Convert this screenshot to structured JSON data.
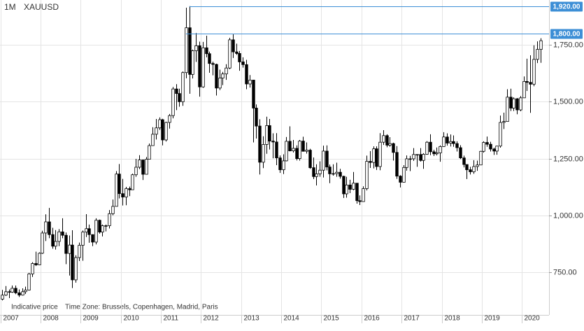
{
  "chart_data": {
    "type": "candlestick",
    "period": "1M",
    "title": "XAUUSD",
    "categories": [
      "2007",
      null,
      null,
      null,
      null,
      null,
      null,
      null,
      null,
      null,
      null,
      null,
      "2008",
      null,
      null,
      null,
      null,
      null,
      null,
      null,
      null,
      null,
      null,
      null,
      "2009",
      null,
      null,
      null,
      null,
      null,
      null,
      null,
      null,
      null,
      null,
      null,
      "2010",
      null,
      null,
      null,
      null,
      null,
      null,
      null,
      null,
      null,
      null,
      null,
      "2011",
      null,
      null,
      null,
      null,
      null,
      null,
      null,
      null,
      null,
      null,
      null,
      "2012",
      null,
      null,
      null,
      null,
      null,
      null,
      null,
      null,
      null,
      null,
      null,
      "2013",
      null,
      null,
      null,
      null,
      null,
      null,
      null,
      null,
      null,
      null,
      null,
      "2014",
      null,
      null,
      null,
      null,
      null,
      null,
      null,
      null,
      null,
      null,
      null,
      "2015",
      null,
      null,
      null,
      null,
      null,
      null,
      null,
      null,
      null,
      null,
      null,
      "2016",
      null,
      null,
      null,
      null,
      null,
      null,
      null,
      null,
      null,
      null,
      null,
      "2017",
      null,
      null,
      null,
      null,
      null,
      null,
      null,
      null,
      null,
      null,
      null,
      "2018",
      null,
      null,
      null,
      null,
      null,
      null,
      null,
      null,
      null,
      null,
      null,
      "2019",
      null,
      null,
      null,
      null,
      null,
      null,
      null,
      null,
      null,
      null,
      null,
      "2020",
      null,
      null,
      null,
      null,
      null
    ],
    "open": [
      632,
      650,
      665,
      663,
      680,
      660,
      650,
      665,
      672,
      743,
      789,
      783,
      834,
      923,
      972,
      916,
      865,
      886,
      928,
      913,
      833,
      870,
      717,
      815,
      869,
      927,
      942,
      916,
      883,
      979,
      927,
      955,
      955,
      1008,
      1040,
      1182,
      1096,
      1081,
      1118,
      1113,
      1179,
      1212,
      1244,
      1181,
      1247,
      1307,
      1357,
      1385,
      1421,
      1332,
      1409,
      1439,
      1556,
      1536,
      1500,
      1628,
      1825,
      1620,
      1724,
      1746,
      1565,
      1737,
      1711,
      1668,
      1664,
      1560,
      1604,
      1622,
      1648,
      1772,
      1719,
      1712,
      1675,
      1663,
      1578,
      1595,
      1472,
      1393,
      1234,
      1312,
      1395,
      1327,
      1323,
      1253,
      1201,
      1240,
      1326,
      1284,
      1295,
      1250,
      1327,
      1282,
      1287,
      1210,
      1171,
      1183,
      1199,
      1283,
      1213,
      1183,
      1184,
      1190,
      1172,
      1095,
      1134,
      1115,
      1142,
      1065,
      1061,
      1118,
      1238,
      1233,
      1293,
      1215,
      1322,
      1351,
      1309,
      1316,
      1277,
      1173,
      1146,
      1211,
      1249,
      1249,
      1268,
      1268,
      1242,
      1269,
      1322,
      1280,
      1271,
      1275,
      1303,
      1345,
      1318,
      1325,
      1316,
      1298,
      1253,
      1224,
      1201,
      1192,
      1215,
      1222,
      1282,
      1321,
      1313,
      1292,
      1283,
      1305,
      1409,
      1413,
      1520,
      1472,
      1513,
      1464,
      1517,
      1589,
      1585,
      1577,
      1686,
      1730
    ],
    "high": [
      673,
      690,
      675,
      692,
      692,
      675,
      680,
      687,
      748,
      795,
      841,
      838,
      933,
      1005,
      1033,
      946,
      936,
      940,
      988,
      925,
      912,
      935,
      825,
      881,
      934,
      1006,
      960,
      917,
      988,
      982,
      960,
      960,
      1024,
      1070,
      1195,
      1226,
      1161,
      1126,
      1127,
      1184,
      1249,
      1265,
      1245,
      1257,
      1316,
      1388,
      1424,
      1431,
      1425,
      1412,
      1446,
      1565,
      1577,
      1557,
      1633,
      1913,
      1920,
      1729,
      1802,
      1764,
      1763,
      1790,
      1720,
      1676,
      1667,
      1641,
      1631,
      1665,
      1781,
      1796,
      1755,
      1723,
      1695,
      1684,
      1617,
      1596,
      1488,
      1423,
      1348,
      1434,
      1424,
      1361,
      1362,
      1264,
      1269,
      1345,
      1392,
      1332,
      1308,
      1332,
      1346,
      1321,
      1293,
      1255,
      1225,
      1238,
      1307,
      1308,
      1224,
      1225,
      1232,
      1205,
      1175,
      1170,
      1157,
      1191,
      1142,
      1088,
      1128,
      1263,
      1283,
      1304,
      1304,
      1362,
      1375,
      1357,
      1344,
      1320,
      1305,
      1177,
      1221,
      1264,
      1262,
      1296,
      1269,
      1296,
      1274,
      1327,
      1357,
      1289,
      1299,
      1308,
      1366,
      1361,
      1356,
      1352,
      1326,
      1309,
      1263,
      1222,
      1214,
      1243,
      1241,
      1284,
      1326,
      1347,
      1324,
      1298,
      1306,
      1439,
      1452,
      1555,
      1557,
      1519,
      1516,
      1525,
      1611,
      1689,
      1704,
      1748,
      1765,
      1779
    ],
    "low": [
      627,
      646,
      637,
      660,
      654,
      642,
      648,
      655,
      670,
      730,
      778,
      782,
      831,
      888,
      900,
      854,
      850,
      865,
      900,
      786,
      736,
      681,
      705,
      800,
      801,
      905,
      880,
      865,
      873,
      920,
      908,
      930,
      943,
      1001,
      1040,
      1075,
      1044,
      1045,
      1085,
      1113,
      1170,
      1204,
      1156,
      1180,
      1246,
      1312,
      1334,
      1376,
      1308,
      1325,
      1382,
      1427,
      1463,
      1478,
      1482,
      1603,
      1535,
      1602,
      1675,
      1522,
      1561,
      1695,
      1627,
      1616,
      1527,
      1551,
      1573,
      1596,
      1643,
      1692,
      1706,
      1636,
      1650,
      1555,
      1562,
      1321,
      1338,
      1180,
      1208,
      1271,
      1290,
      1251,
      1221,
      1187,
      1182,
      1238,
      1282,
      1277,
      1242,
      1241,
      1281,
      1272,
      1205,
      1160,
      1132,
      1170,
      1167,
      1198,
      1142,
      1175,
      1170,
      1162,
      1077,
      1078,
      1098,
      1111,
      1052,
      1046,
      1061,
      1110,
      1209,
      1207,
      1200,
      1199,
      1310,
      1300,
      1302,
      1241,
      1161,
      1123,
      1145,
      1197,
      1195,
      1240,
      1214,
      1237,
      1205,
      1267,
      1265,
      1261,
      1264,
      1236,
      1302,
      1307,
      1303,
      1302,
      1281,
      1248,
      1211,
      1160,
      1180,
      1183,
      1196,
      1221,
      1276,
      1302,
      1281,
      1266,
      1267,
      1298,
      1380,
      1412,
      1459,
      1459,
      1445,
      1458,
      1517,
      1547,
      1451,
      1568,
      1670,
      1671
    ],
    "close": [
      650,
      665,
      663,
      680,
      660,
      650,
      665,
      672,
      743,
      789,
      783,
      834,
      923,
      972,
      916,
      865,
      886,
      928,
      913,
      833,
      870,
      717,
      815,
      869,
      927,
      942,
      916,
      883,
      979,
      927,
      955,
      955,
      1008,
      1040,
      1182,
      1096,
      1081,
      1118,
      1113,
      1179,
      1212,
      1244,
      1181,
      1247,
      1307,
      1357,
      1385,
      1421,
      1332,
      1409,
      1439,
      1556,
      1536,
      1500,
      1628,
      1825,
      1620,
      1724,
      1746,
      1565,
      1737,
      1711,
      1668,
      1664,
      1560,
      1604,
      1622,
      1648,
      1772,
      1719,
      1712,
      1675,
      1663,
      1578,
      1595,
      1472,
      1393,
      1234,
      1312,
      1395,
      1327,
      1323,
      1253,
      1201,
      1240,
      1326,
      1284,
      1295,
      1250,
      1327,
      1282,
      1287,
      1210,
      1171,
      1183,
      1199,
      1283,
      1213,
      1183,
      1184,
      1190,
      1172,
      1095,
      1134,
      1115,
      1142,
      1065,
      1061,
      1118,
      1238,
      1233,
      1293,
      1215,
      1322,
      1351,
      1309,
      1316,
      1277,
      1173,
      1146,
      1211,
      1249,
      1249,
      1268,
      1268,
      1242,
      1269,
      1322,
      1280,
      1271,
      1275,
      1303,
      1345,
      1318,
      1325,
      1316,
      1298,
      1253,
      1224,
      1201,
      1192,
      1215,
      1222,
      1282,
      1321,
      1313,
      1292,
      1283,
      1305,
      1409,
      1413,
      1520,
      1472,
      1513,
      1464,
      1517,
      1589,
      1585,
      1577,
      1686,
      1730,
      1768
    ],
    "ylim": [
      563,
      1947
    ],
    "yticks": [
      {
        "value": 750,
        "label": "750.00"
      },
      {
        "value": 1000,
        "label": "1,000.00"
      },
      {
        "value": 1250,
        "label": "1,250.00"
      },
      {
        "value": 1500,
        "label": "1,500.00"
      },
      {
        "value": 1750,
        "label": "1,750.00"
      }
    ],
    "annotations": [
      {
        "value": 1920,
        "label": "1,920.00",
        "color": "#3d8fd6"
      },
      {
        "value": 1800,
        "label": "1,800.00",
        "color": "#3d8fd6"
      }
    ],
    "notes": [
      "Indicative price",
      "Time Zone: Brussels, Copenhagen, Madrid, Paris"
    ],
    "grid": true
  }
}
